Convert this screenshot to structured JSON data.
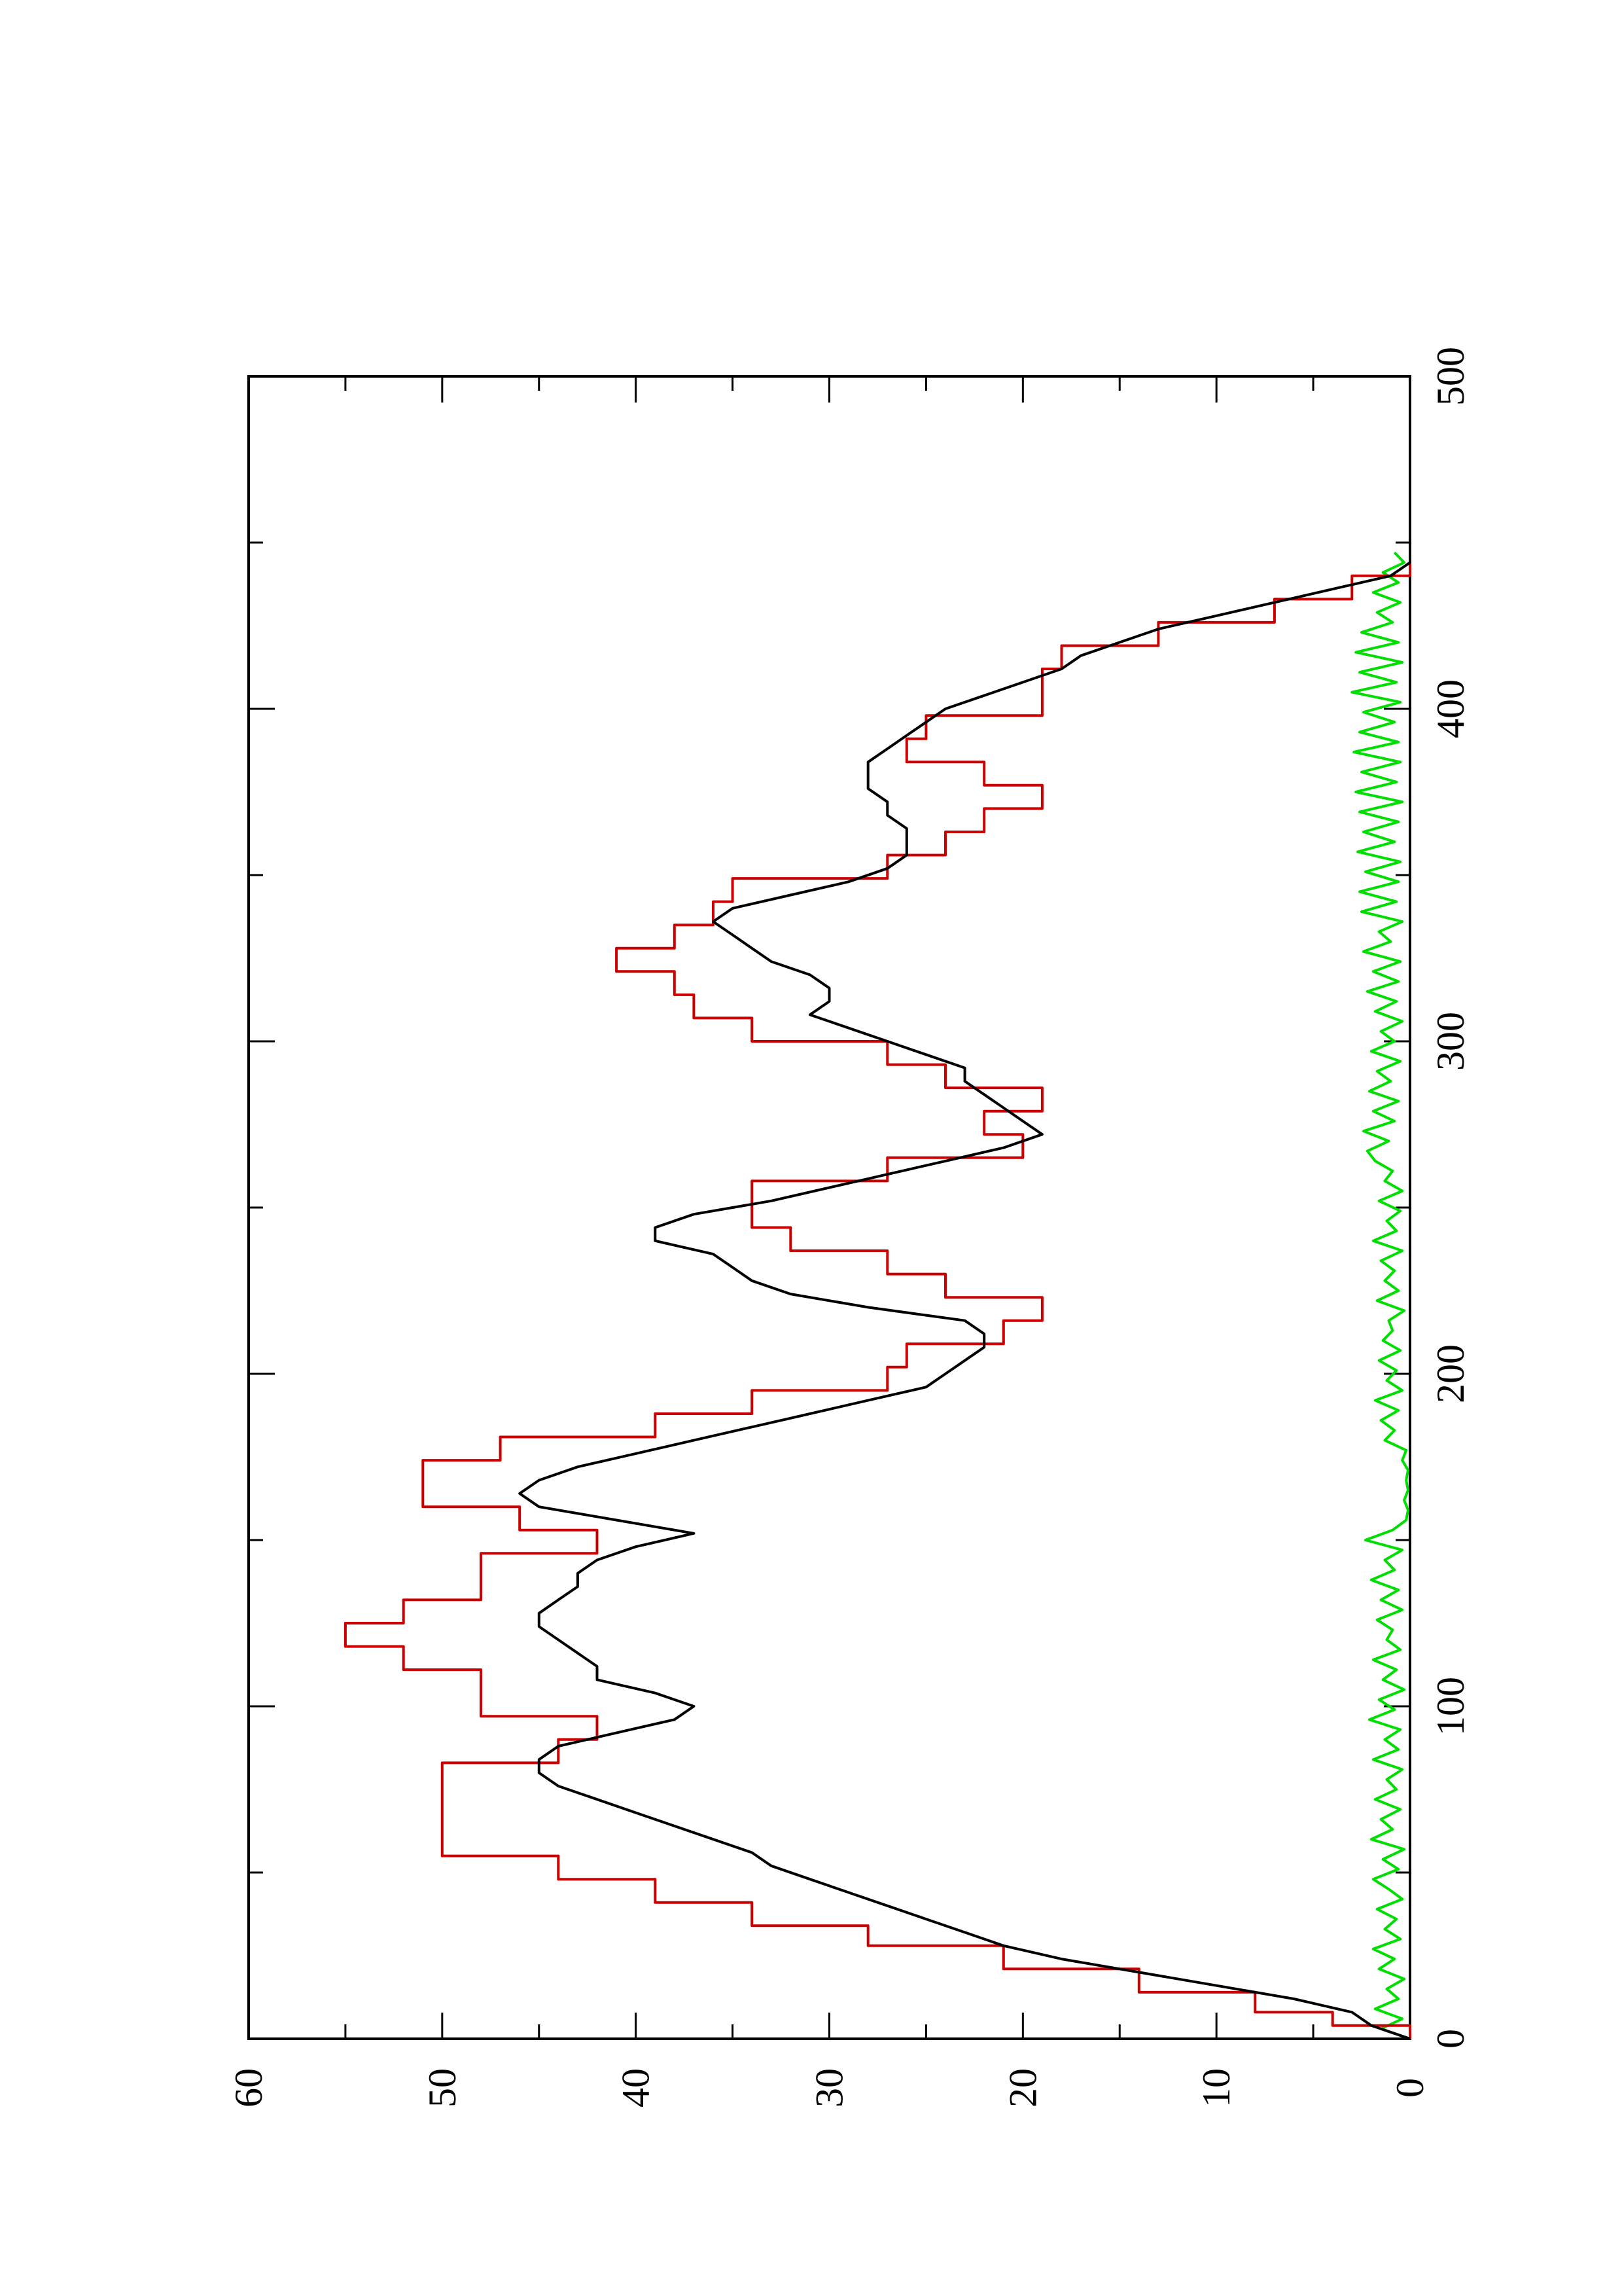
{
  "chart_data": {
    "type": "line",
    "title": "",
    "xlabel": "",
    "ylabel": "",
    "xlim": [
      0,
      500
    ],
    "ylim": [
      0,
      60
    ],
    "x_ticks": [
      "0",
      "100",
      "200",
      "300",
      "400",
      "500"
    ],
    "y_ticks": [
      "0",
      "10",
      "20",
      "30",
      "40",
      "50",
      "60"
    ],
    "grid": false,
    "legend": "none",
    "orientation": "rotated-90-counterclockwise",
    "series": [
      {
        "color": "#cc0000",
        "x": [
          0,
          4,
          4,
          8,
          8,
          14,
          14,
          21,
          21,
          28,
          28,
          34,
          34,
          41,
          41,
          48,
          48,
          55,
          55,
          62,
          62,
          69,
          69,
          76,
          76,
          83,
          83,
          90,
          90,
          97,
          97,
          104,
          104,
          111,
          111,
          118,
          118,
          125,
          125,
          132,
          132,
          139,
          139,
          146,
          146,
          153,
          153,
          160,
          160,
          167,
          167,
          174,
          174,
          181,
          181,
          188,
          188,
          195,
          195,
          202,
          202,
          209,
          209,
          216,
          216,
          223,
          223,
          230,
          230,
          237,
          237,
          244,
          244,
          251,
          251,
          258,
          258,
          265,
          265,
          272,
          272,
          279,
          279,
          286,
          286,
          293,
          293,
          300,
          300,
          307,
          307,
          314,
          314,
          321,
          321,
          328,
          328,
          335,
          335,
          342,
          342,
          349,
          349,
          356,
          356,
          363,
          363,
          370,
          370,
          377,
          377,
          384,
          384,
          391,
          391,
          398,
          398,
          405,
          405,
          412,
          412,
          419,
          419,
          426,
          426,
          433,
          433,
          440,
          440,
          447
        ],
        "y": [
          0,
          0,
          4,
          4,
          8,
          8,
          14,
          14,
          21,
          21,
          28,
          28,
          34,
          34,
          39,
          39,
          44,
          44,
          50,
          50,
          50,
          50,
          50,
          50,
          50,
          50,
          44,
          44,
          42,
          42,
          48,
          48,
          48,
          48,
          52,
          52,
          55,
          55,
          52,
          52,
          48,
          48,
          48,
          48,
          42,
          42,
          46,
          46,
          51,
          51,
          51,
          51,
          47,
          47,
          39,
          39,
          34,
          34,
          27,
          27,
          26,
          26,
          21,
          21,
          19,
          19,
          24,
          24,
          27,
          27,
          32,
          32,
          34,
          34,
          34,
          34,
          27,
          27,
          20,
          20,
          22,
          22,
          19,
          19,
          24,
          24,
          27,
          27,
          34,
          34,
          37,
          37,
          38,
          38,
          41,
          41,
          38,
          38,
          36,
          36,
          35,
          35,
          27,
          27,
          24,
          24,
          22,
          22,
          19,
          19,
          22,
          22,
          26,
          26,
          25,
          25,
          19,
          19,
          19,
          19,
          18,
          18,
          13,
          13,
          7,
          7,
          3,
          3,
          0,
          0
        ]
      },
      {
        "color": "#000000",
        "x": [
          0,
          4,
          8,
          12,
          16,
          20,
          24,
          28,
          32,
          36,
          40,
          44,
          48,
          52,
          56,
          60,
          64,
          68,
          72,
          76,
          80,
          84,
          88,
          92,
          96,
          100,
          104,
          108,
          112,
          116,
          120,
          124,
          128,
          132,
          136,
          140,
          144,
          148,
          152,
          156,
          160,
          164,
          168,
          172,
          176,
          180,
          184,
          188,
          192,
          196,
          200,
          204,
          208,
          212,
          216,
          220,
          224,
          228,
          232,
          236,
          240,
          244,
          248,
          252,
          256,
          260,
          264,
          268,
          272,
          276,
          280,
          284,
          288,
          292,
          296,
          300,
          304,
          308,
          312,
          316,
          320,
          324,
          328,
          332,
          336,
          340,
          344,
          348,
          352,
          356,
          360,
          364,
          368,
          372,
          376,
          380,
          384,
          388,
          392,
          396,
          400,
          404,
          408,
          412,
          416,
          420,
          424,
          428,
          432,
          436,
          440,
          444,
          447
        ],
        "y": [
          0,
          2,
          3,
          6,
          10,
          14,
          18,
          21,
          23,
          25,
          27,
          29,
          31,
          33,
          34,
          36,
          38,
          40,
          42,
          44,
          45,
          45,
          44,
          41,
          38,
          37,
          39,
          42,
          42,
          43,
          44,
          45,
          45,
          44,
          43,
          43,
          42,
          40,
          37,
          41,
          45,
          46,
          45,
          43,
          40,
          37,
          34,
          31,
          28,
          25,
          24,
          23,
          22,
          22,
          23,
          28,
          32,
          34,
          35,
          36,
          39,
          39,
          37,
          33,
          30,
          27,
          24,
          21,
          19,
          20,
          21,
          22,
          23,
          23,
          25,
          27,
          29,
          31,
          30,
          30,
          31,
          33,
          34,
          35,
          36,
          35,
          32,
          29,
          27,
          26,
          26,
          26,
          27,
          27,
          28,
          28,
          28,
          27,
          26,
          25,
          24,
          22,
          20,
          18,
          17,
          15,
          13,
          10,
          7,
          4,
          1,
          0,
          0
        ]
      },
      {
        "color": "#00dd00",
        "x": [
          0,
          3,
          6,
          9,
          12,
          15,
          18,
          21,
          24,
          27,
          30,
          33,
          36,
          39,
          42,
          45,
          48,
          51,
          54,
          57,
          60,
          63,
          66,
          69,
          72,
          75,
          78,
          81,
          84,
          87,
          90,
          93,
          96,
          99,
          102,
          105,
          108,
          111,
          114,
          117,
          120,
          123,
          126,
          129,
          132,
          135,
          138,
          141,
          144,
          147,
          150,
          153,
          156,
          159,
          162,
          165,
          168,
          171,
          174,
          177,
          180,
          183,
          186,
          189,
          192,
          195,
          198,
          201,
          204,
          207,
          210,
          213,
          216,
          219,
          222,
          225,
          228,
          231,
          234,
          237,
          240,
          243,
          246,
          249,
          252,
          255,
          258,
          261,
          264,
          267,
          270,
          273,
          276,
          279,
          282,
          285,
          288,
          291,
          294,
          297,
          300,
          303,
          306,
          309,
          312,
          315,
          318,
          321,
          324,
          327,
          330,
          333,
          336,
          339,
          342,
          345,
          348,
          351,
          354,
          357,
          360,
          363,
          366,
          369,
          372,
          375,
          378,
          381,
          384,
          387,
          390,
          393,
          396,
          399,
          402,
          405,
          408,
          411,
          414,
          417,
          420,
          423,
          426,
          429,
          432,
          435,
          438,
          441,
          444,
          447
        ],
        "y": [
          0,
          1.5,
          0.4,
          1.8,
          0.6,
          1.2,
          0.3,
          1.6,
          0.8,
          1.9,
          0.5,
          1.3,
          0.7,
          1.7,
          0.4,
          1.1,
          1.9,
          0.6,
          1.4,
          0.3,
          2,
          0.9,
          1.5,
          0.5,
          1.8,
          0.7,
          1.2,
          0.4,
          1.9,
          0.6,
          1.3,
          0.5,
          2.1,
          0.8,
          1.6,
          0.3,
          1.4,
          0.7,
          1.9,
          0.5,
          1.2,
          0.9,
          1.7,
          0.4,
          1.5,
          0.6,
          2,
          0.8,
          1.3,
          0.4,
          2.3,
          0.9,
          0.2,
          0.1,
          0.3,
          0.1,
          0.2,
          0.1,
          0.4,
          0.2,
          1.3,
          0.8,
          1.5,
          0.6,
          1.8,
          0.4,
          1.2,
          0.7,
          1.6,
          0.5,
          1.4,
          0.9,
          1.1,
          0.3,
          1.7,
          0.6,
          1.3,
          0.8,
          1.5,
          0.4,
          1.9,
          0.7,
          1.2,
          0.5,
          1.6,
          0.4,
          1.3,
          0.9,
          1.8,
          2.2,
          1.1,
          2.4,
          0.8,
          1.9,
          0.6,
          2.1,
          1,
          1.7,
          0.5,
          2,
          0.8,
          1.5,
          0.4,
          1.8,
          0.7,
          2.2,
          0.6,
          1.9,
          0.5,
          2.4,
          1,
          1.6,
          0.4,
          2.5,
          0.7,
          2.6,
          0.6,
          2.3,
          0.5,
          2.7,
          0.8,
          2.4,
          0.6,
          2.6,
          0.4,
          2.8,
          0.7,
          2.5,
          0.5,
          2.9,
          0.6,
          2.6,
          0.8,
          2.4,
          0.5,
          3,
          0.7,
          2.6,
          0.4,
          2.8,
          0.6,
          2.5,
          0.9,
          1.7,
          0.5,
          1.9,
          0.6,
          1.4,
          0.3,
          0.8
        ]
      }
    ]
  }
}
